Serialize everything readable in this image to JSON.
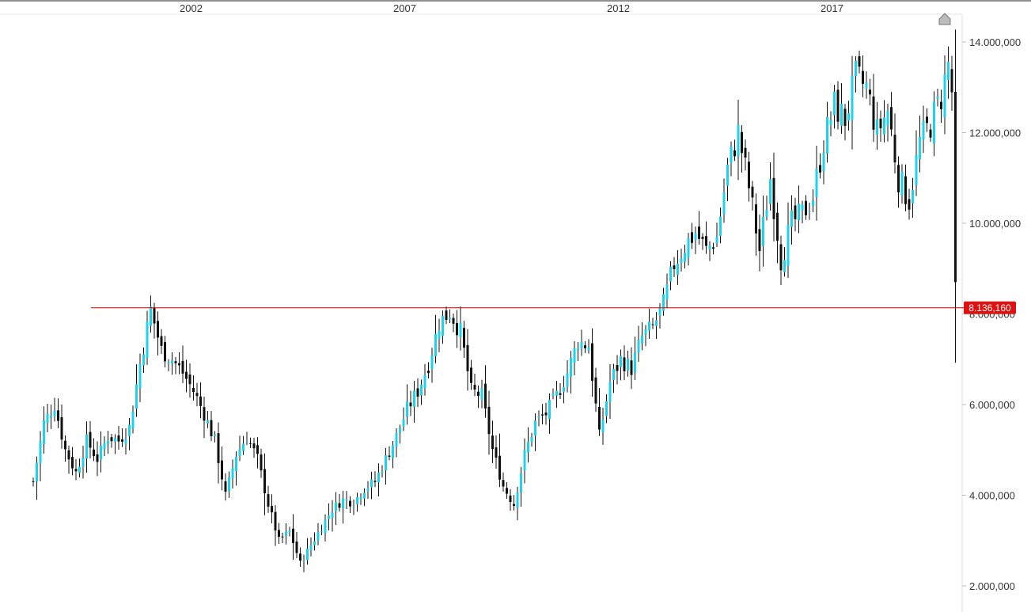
{
  "chart_data": {
    "type": "candlestick",
    "x_ticks": [
      "2002",
      "2007",
      "2012",
      "2017"
    ],
    "y_ticks": [
      {
        "value": 2000000,
        "label": "2.000,000"
      },
      {
        "value": 4000000,
        "label": "4.000,000"
      },
      {
        "value": 6000000,
        "label": "6.000,000"
      },
      {
        "value": 8000000,
        "label": "8.000,000"
      },
      {
        "value": 10000000,
        "label": "10.000,000"
      },
      {
        "value": 12000000,
        "label": "12.000,000"
      },
      {
        "value": 14000000,
        "label": "14.000,000"
      }
    ],
    "ylim": [
      1700000,
      14800000
    ],
    "reference_line": {
      "value": 8136160,
      "label": "8.136,160"
    },
    "colors": {
      "up": "#1ed2ee",
      "down": "#111111",
      "wick": "#111111",
      "reference": "#cc0000",
      "reference_label_bg": "#e01010"
    },
    "close_path": [
      [
        "1998-08",
        4300000
      ],
      [
        "1998-11",
        5600000
      ],
      [
        "1999-02",
        6000000
      ],
      [
        "1999-05",
        5000000
      ],
      [
        "1999-08",
        4500000
      ],
      [
        "1999-11",
        5200000
      ],
      [
        "2000-02",
        4800000
      ],
      [
        "2000-05",
        5300000
      ],
      [
        "2000-08",
        5200000
      ],
      [
        "2000-11",
        5500000
      ],
      [
        "2001-02",
        6900000
      ],
      [
        "2001-05",
        8100000
      ],
      [
        "2001-08",
        7200000
      ],
      [
        "2001-11",
        7000000
      ],
      [
        "2002-02",
        6700000
      ],
      [
        "2002-05",
        6300000
      ],
      [
        "2002-08",
        5800000
      ],
      [
        "2002-11",
        5200000
      ],
      [
        "2003-02",
        4000000
      ],
      [
        "2003-05",
        4900000
      ],
      [
        "2003-08",
        5300000
      ],
      [
        "2003-11",
        4800000
      ],
      [
        "2004-02",
        3800000
      ],
      [
        "2004-05",
        3000000
      ],
      [
        "2004-08",
        3200000
      ],
      [
        "2004-11",
        2500000
      ],
      [
        "2005-02",
        2900000
      ],
      [
        "2005-05",
        3300000
      ],
      [
        "2005-08",
        3700000
      ],
      [
        "2005-11",
        3900000
      ],
      [
        "2006-02",
        3850000
      ],
      [
        "2006-05",
        4150000
      ],
      [
        "2006-08",
        4300000
      ],
      [
        "2006-11",
        4800000
      ],
      [
        "2007-02",
        5300000
      ],
      [
        "2007-05",
        5900000
      ],
      [
        "2007-08",
        6300000
      ],
      [
        "2007-11",
        6900000
      ],
      [
        "2008-02",
        7800000
      ],
      [
        "2008-05",
        8050000
      ],
      [
        "2008-08",
        7600000
      ],
      [
        "2008-11",
        6300000
      ],
      [
        "2009-02",
        6200000
      ],
      [
        "2009-05",
        5000000
      ],
      [
        "2009-08",
        4200000
      ],
      [
        "2009-11",
        3800000
      ],
      [
        "2010-02",
        4900000
      ],
      [
        "2010-05",
        5600000
      ],
      [
        "2010-08",
        5800000
      ],
      [
        "2010-11",
        6200000
      ],
      [
        "2011-02",
        6700000
      ],
      [
        "2011-05",
        7400000
      ],
      [
        "2011-08",
        7300000
      ],
      [
        "2011-11",
        5300000
      ],
      [
        "2012-02",
        6500000
      ],
      [
        "2012-05",
        7000000
      ],
      [
        "2012-08",
        6800000
      ],
      [
        "2012-11",
        7500000
      ],
      [
        "2013-02",
        7700000
      ],
      [
        "2013-05",
        8200000
      ],
      [
        "2013-08",
        9100000
      ],
      [
        "2013-11",
        9500000
      ],
      [
        "2014-02",
        9800000
      ],
      [
        "2014-05",
        9400000
      ],
      [
        "2014-08",
        9700000
      ],
      [
        "2014-11",
        11200000
      ],
      [
        "2015-02",
        12000000
      ],
      [
        "2015-05",
        10800000
      ],
      [
        "2015-08",
        9400000
      ],
      [
        "2015-11",
        11000000
      ],
      [
        "2016-02",
        9200000
      ],
      [
        "2016-05",
        10000000
      ],
      [
        "2016-08",
        10200000
      ],
      [
        "2016-11",
        10600000
      ],
      [
        "2017-02",
        11800000
      ],
      [
        "2017-05",
        12600000
      ],
      [
        "2017-08",
        12300000
      ],
      [
        "2017-11",
        13200000
      ],
      [
        "2018-02",
        13000000
      ],
      [
        "2018-05",
        12000000
      ],
      [
        "2018-08",
        12500000
      ],
      [
        "2018-11",
        11000000
      ],
      [
        "2019-02",
        10500000
      ],
      [
        "2019-05",
        11800000
      ],
      [
        "2019-08",
        12200000
      ],
      [
        "2019-11",
        12800000
      ],
      [
        "2020-01",
        13500000
      ],
      [
        "2020-02",
        12900000
      ],
      [
        "2020-03",
        8700000
      ]
    ]
  }
}
